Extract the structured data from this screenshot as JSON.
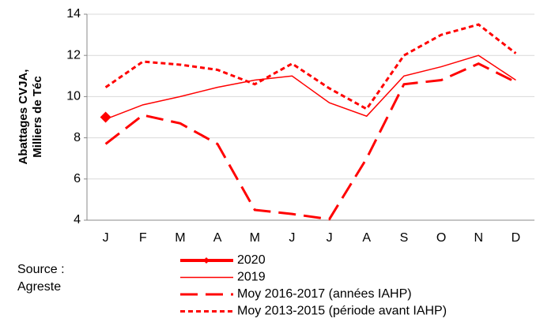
{
  "chart_data": {
    "type": "line",
    "y_label": [
      "Abattages CVJA,",
      "Milliers de Téc"
    ],
    "source": [
      "Source :",
      "Agreste"
    ],
    "categories": [
      "J",
      "F",
      "M",
      "A",
      "M",
      "J",
      "J",
      "A",
      "S",
      "O",
      "N",
      "D"
    ],
    "ylim": [
      4,
      14
    ],
    "yticks": [
      4,
      6,
      8,
      10,
      12,
      14
    ],
    "grid": true,
    "series": [
      {
        "name": "2020",
        "color": "#ff0000",
        "style": "solid",
        "width": 4,
        "marker": "diamond",
        "values": [
          9.0,
          null,
          null,
          null,
          null,
          null,
          null,
          null,
          null,
          null,
          null,
          null
        ]
      },
      {
        "name": "2019",
        "color": "#ff0000",
        "style": "solid",
        "width": 1.5,
        "values": [
          8.9,
          9.6,
          10.0,
          10.45,
          10.8,
          11.0,
          9.7,
          9.05,
          11.0,
          11.45,
          12.0,
          10.8
        ]
      },
      {
        "name": "Moy 2016-2017 (années IAHP)",
        "color": "#ff0000",
        "style": "long-dash",
        "width": 3,
        "values": [
          7.7,
          9.1,
          8.7,
          7.7,
          4.5,
          4.3,
          4.05,
          7.0,
          10.6,
          10.8,
          11.6,
          10.7
        ]
      },
      {
        "name": "Moy 2013-2015 (période avant IAHP)",
        "color": "#ff0000",
        "style": "short-dash",
        "width": 3,
        "values": [
          10.45,
          11.7,
          11.55,
          11.3,
          10.6,
          11.6,
          10.4,
          9.4,
          12.0,
          13.0,
          13.5,
          12.1
        ]
      }
    ]
  }
}
